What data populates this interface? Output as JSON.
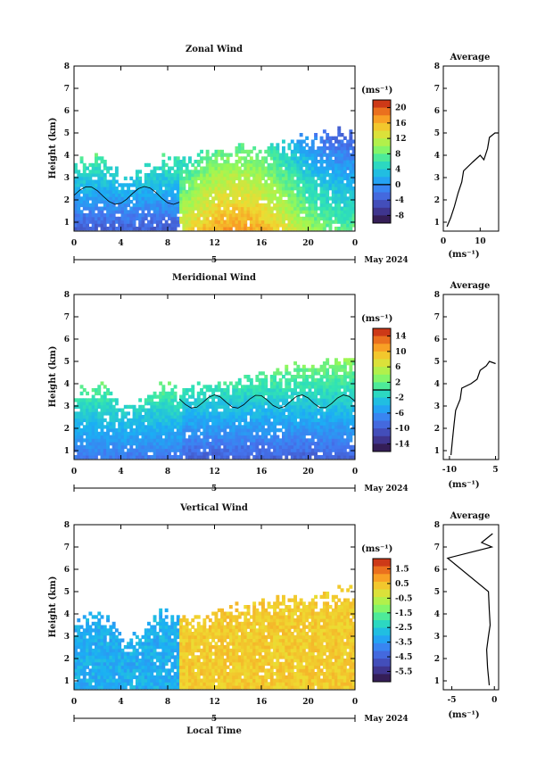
{
  "figure": {
    "xlabel": "Local Time",
    "avg_title": "Average",
    "ylabel": "Height (km)",
    "unit": "(ms⁻¹)",
    "date_label": "May 2024",
    "day_label": "5"
  },
  "chart_data": [
    {
      "type": "heatmap",
      "title": "Zonal Wind",
      "xlabel": "",
      "ylabel": "Height (km)",
      "x_ticks": [
        "0",
        "4",
        "8",
        "12",
        "16",
        "20",
        "0"
      ],
      "x_range_hours": [
        0,
        24
      ],
      "y_ticks": [
        "1",
        "2",
        "3",
        "4",
        "5",
        "6",
        "7",
        "8"
      ],
      "y_range_km": [
        0.6,
        8.0
      ],
      "colorbar": {
        "unit": "(ms⁻¹)",
        "range": [
          -10,
          22
        ],
        "ticks": [
          20,
          16,
          12,
          8,
          4,
          0,
          -4,
          -8
        ],
        "contour": 0
      },
      "grid": false,
      "average_profile": {
        "title": "Average",
        "xlabel": "(ms⁻¹)",
        "x_ticks": [
          "0",
          "10"
        ],
        "x_range": [
          0,
          15
        ],
        "points": [
          [
            1,
            0.8
          ],
          [
            2,
            1.2
          ],
          [
            3,
            1.7
          ],
          [
            4,
            2.3
          ],
          [
            5,
            2.8
          ],
          [
            5.5,
            3.3
          ],
          [
            8,
            3.7
          ],
          [
            10,
            4.0
          ],
          [
            11,
            3.8
          ],
          [
            12,
            4.3
          ],
          [
            12.5,
            4.8
          ],
          [
            14,
            5.0
          ],
          [
            15,
            5.0
          ]
        ]
      }
    },
    {
      "type": "heatmap",
      "title": "Meridional Wind",
      "xlabel": "",
      "ylabel": "Height (km)",
      "x_ticks": [
        "0",
        "4",
        "8",
        "12",
        "16",
        "20",
        "0"
      ],
      "x_range_hours": [
        0,
        24
      ],
      "y_ticks": [
        "1",
        "2",
        "3",
        "4",
        "5",
        "6",
        "7",
        "8"
      ],
      "y_range_km": [
        0.6,
        8.0
      ],
      "colorbar": {
        "unit": "(ms⁻¹)",
        "range": [
          -16,
          16
        ],
        "ticks": [
          14,
          10,
          6,
          2,
          -2,
          -6,
          -10,
          -14
        ],
        "contour": 0
      },
      "grid": false,
      "average_profile": {
        "title": "Average",
        "xlabel": "(ms⁻¹)",
        "x_ticks": [
          "-10",
          "5"
        ],
        "x_range": [
          -12,
          6
        ],
        "points": [
          [
            -9.5,
            0.8
          ],
          [
            -9.0,
            1.5
          ],
          [
            -8.5,
            2.2
          ],
          [
            -8.0,
            2.8
          ],
          [
            -6.5,
            3.3
          ],
          [
            -6,
            3.8
          ],
          [
            -3,
            4.0
          ],
          [
            -1,
            4.2
          ],
          [
            0,
            4.6
          ],
          [
            2,
            4.8
          ],
          [
            3,
            5.0
          ],
          [
            5,
            4.9
          ]
        ]
      }
    },
    {
      "type": "heatmap",
      "title": "Vertical Wind",
      "xlabel": "Local Time",
      "ylabel": "Height (km)",
      "x_ticks": [
        "0",
        "4",
        "8",
        "12",
        "16",
        "20",
        "0"
      ],
      "x_range_hours": [
        0,
        24
      ],
      "y_ticks": [
        "1",
        "2",
        "3",
        "4",
        "5",
        "6",
        "7",
        "8"
      ],
      "y_range_km": [
        0.6,
        8.0
      ],
      "colorbar": {
        "unit": "(ms⁻¹)",
        "range": [
          -6.2,
          2.2
        ],
        "ticks": [
          1.5,
          0.5,
          -0.5,
          -1.5,
          -2.5,
          -3.5,
          -4.5,
          -5.5
        ],
        "contour": null
      },
      "grid": false,
      "average_profile": {
        "title": "Average",
        "xlabel": "(ms⁻¹)",
        "x_ticks": [
          "-5",
          "0"
        ],
        "x_range": [
          -6,
          0.5
        ],
        "points": [
          [
            -0.6,
            0.8
          ],
          [
            -0.8,
            1.6
          ],
          [
            -0.9,
            2.4
          ],
          [
            -0.7,
            3.0
          ],
          [
            -0.5,
            3.5
          ],
          [
            -0.6,
            4.2
          ],
          [
            -0.7,
            5.0
          ],
          [
            -5.5,
            6.5
          ],
          [
            -0.3,
            7.0
          ],
          [
            -1.5,
            7.2
          ],
          [
            -0.2,
            7.6
          ]
        ]
      }
    }
  ]
}
